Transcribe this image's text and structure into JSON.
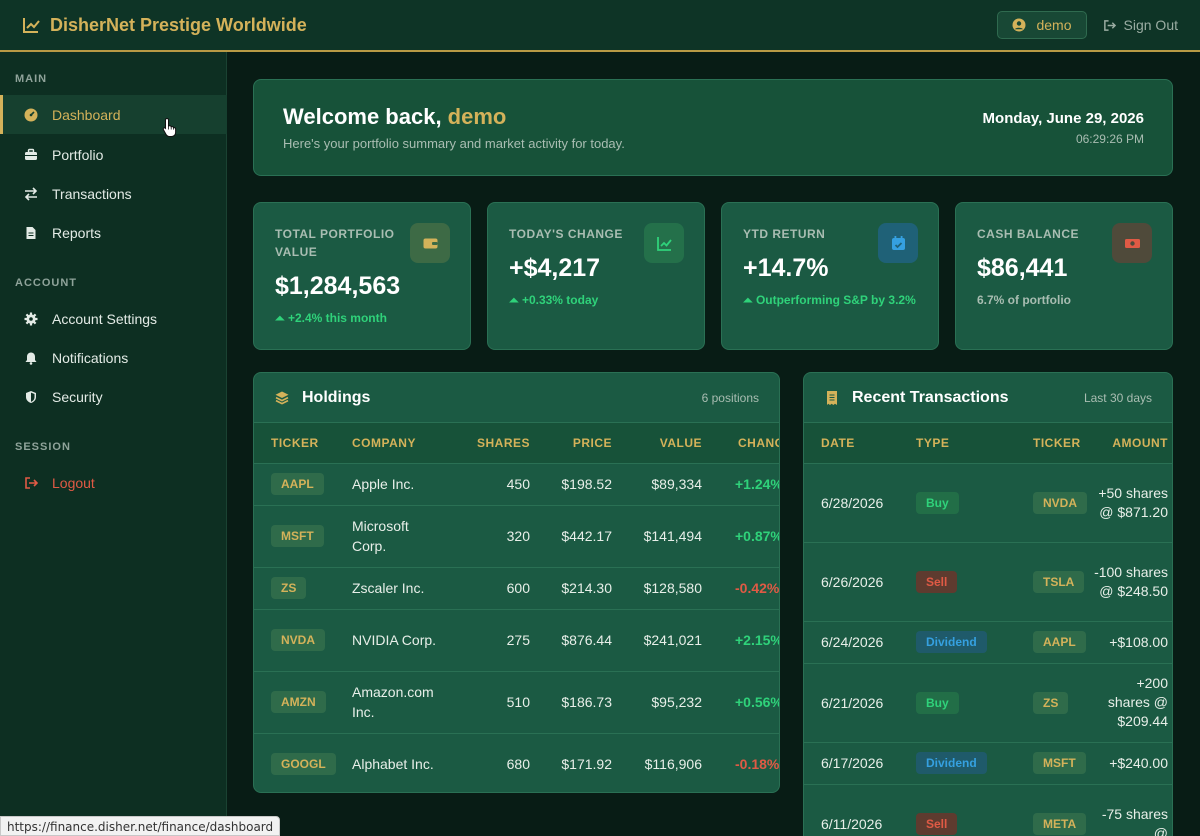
{
  "header": {
    "brand": "DisherNet Prestige Worldwide",
    "user": "demo",
    "signout": "Sign Out"
  },
  "sidebar": {
    "sections": [
      {
        "title": "MAIN",
        "items": [
          {
            "label": "Dashboard",
            "icon": "gauge-icon",
            "active": true
          },
          {
            "label": "Portfolio",
            "icon": "briefcase-icon"
          },
          {
            "label": "Transactions",
            "icon": "arrows-swap-icon"
          },
          {
            "label": "Reports",
            "icon": "document-icon"
          }
        ]
      },
      {
        "title": "ACCOUNT",
        "items": [
          {
            "label": "Account Settings",
            "icon": "gear-icon"
          },
          {
            "label": "Notifications",
            "icon": "bell-icon"
          },
          {
            "label": "Security",
            "icon": "shield-icon"
          }
        ]
      },
      {
        "title": "SESSION",
        "items": [
          {
            "label": "Logout",
            "icon": "logout-icon"
          }
        ]
      }
    ]
  },
  "welcome": {
    "prefix": "Welcome back, ",
    "user": "demo",
    "subtitle": "Here's your portfolio summary and market activity for today.",
    "date": "Monday, June 29, 2026",
    "time": "06:29:26 PM"
  },
  "stats": [
    {
      "label": "TOTAL PORTFOLIO VALUE",
      "value": "$1,284,563",
      "note": "+2.4% this month",
      "icon": "wallet-icon",
      "accent": "#d4b25a"
    },
    {
      "label": "TODAY'S CHANGE",
      "value": "+$4,217",
      "note": "+0.33% today",
      "icon": "chart-line-icon",
      "accent": "#2fd27a"
    },
    {
      "label": "YTD RETURN",
      "value": "+14.7%",
      "note": "Outperforming S&P by 3.2%",
      "icon": "calendar-check-icon",
      "accent": "#35a0e0"
    },
    {
      "label": "CASH BALANCE",
      "value": "$86,441",
      "note": "6.7% of portfolio",
      "icon": "money-icon",
      "accent": "#e05a45"
    }
  ],
  "holdings": {
    "title": "Holdings",
    "meta": "6 positions",
    "columns": [
      "TICKER",
      "COMPANY",
      "SHARES",
      "PRICE",
      "VALUE",
      "CHANG"
    ],
    "rows": [
      {
        "ticker": "AAPL",
        "company": "Apple Inc.",
        "shares": "450",
        "price": "$198.52",
        "value": "$89,334",
        "change": "+1.24%",
        "dir": "pos"
      },
      {
        "ticker": "MSFT",
        "company": "Microsoft Corp.",
        "shares": "320",
        "price": "$442.17",
        "value": "$141,494",
        "change": "+0.87%",
        "dir": "pos"
      },
      {
        "ticker": "ZS",
        "company": "Zscaler Inc.",
        "shares": "600",
        "price": "$214.30",
        "value": "$128,580",
        "change": "-0.42%",
        "dir": "neg"
      },
      {
        "ticker": "NVDA",
        "company": "NVIDIA Corp.",
        "shares": "275",
        "price": "$876.44",
        "value": "$241,021",
        "change": "+2.15%",
        "dir": "pos"
      },
      {
        "ticker": "AMZN",
        "company": "Amazon.com Inc.",
        "shares": "510",
        "price": "$186.73",
        "value": "$95,232",
        "change": "+0.56%",
        "dir": "pos"
      },
      {
        "ticker": "GOOGL",
        "company": "Alphabet Inc.",
        "shares": "680",
        "price": "$171.92",
        "value": "$116,906",
        "change": "-0.18%",
        "dir": "neg"
      }
    ]
  },
  "transactions": {
    "title": "Recent Transactions",
    "meta": "Last 30 days",
    "columns": [
      "DATE",
      "TYPE",
      "TICKER",
      "AMOUNT"
    ],
    "rows": [
      {
        "date": "6/28/2026",
        "type": "Buy",
        "kind": "buy",
        "ticker": "NVDA",
        "amount": "+50 shares @ $871.20"
      },
      {
        "date": "6/26/2026",
        "type": "Sell",
        "kind": "sell",
        "ticker": "TSLA",
        "amount": "-100 shares @ $248.50"
      },
      {
        "date": "6/24/2026",
        "type": "Dividend",
        "kind": "div",
        "ticker": "AAPL",
        "amount": "+$108.00"
      },
      {
        "date": "6/21/2026",
        "type": "Buy",
        "kind": "buy",
        "ticker": "ZS",
        "amount": "+200 shares @ $209.44"
      },
      {
        "date": "6/17/2026",
        "type": "Dividend",
        "kind": "div",
        "ticker": "MSFT",
        "amount": "+$240.00"
      },
      {
        "date": "6/11/2026",
        "type": "Sell",
        "kind": "sell",
        "ticker": "META",
        "amount": "-75 shares @"
      }
    ]
  },
  "statusbar": {
    "url": "https://finance.disher.net/finance/dashboard"
  }
}
